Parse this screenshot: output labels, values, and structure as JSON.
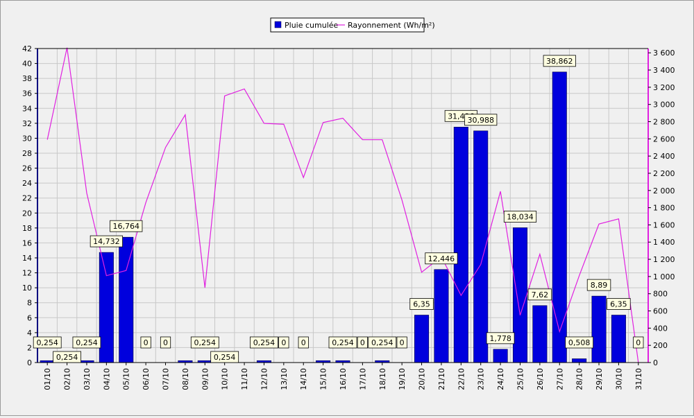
{
  "chart_data": {
    "type": "bar",
    "categories": [
      "01/10",
      "02/10",
      "03/10",
      "04/10",
      "05/10",
      "06/10",
      "07/10",
      "08/10",
      "09/10",
      "10/10",
      "11/10",
      "12/10",
      "13/10",
      "14/10",
      "15/10",
      "16/10",
      "17/10",
      "18/10",
      "19/10",
      "20/10",
      "21/10",
      "22/10",
      "23/10",
      "24/10",
      "25/10",
      "26/10",
      "27/10",
      "28/10",
      "29/10",
      "30/10",
      "31/10"
    ],
    "series": [
      {
        "name": "Pluie cumulée",
        "kind": "bar",
        "axis": "left",
        "color": "#0000dd",
        "values": [
          0.254,
          0.254,
          0.254,
          14.732,
          16.764,
          0,
          0,
          0.254,
          0.254,
          0.254,
          0,
          0.254,
          0,
          0,
          0.254,
          0.254,
          0,
          0.254,
          0,
          6.35,
          12.446,
          31.496,
          30.988,
          1.778,
          18.034,
          7.62,
          38.862,
          0.508,
          8.89,
          6.35,
          0
        ],
        "labels": [
          "0,254",
          "0,254",
          "0,254",
          "14,732",
          "16,764",
          "0",
          "0",
          "",
          "0,254",
          "0,254",
          "",
          "0,254",
          "0",
          "0",
          "",
          "0,254",
          "0",
          "0,254",
          "0",
          "6,35",
          "12,446",
          "31,496",
          "30,988",
          "1,778",
          "18,034",
          "7,62",
          "38,862",
          "0,508",
          "8,89",
          "6,35",
          "0"
        ]
      },
      {
        "name": "Rayonnement (Wh/m²)",
        "kind": "line",
        "axis": "right",
        "color": "#e020e0",
        "values": [
          2590,
          3660,
          1970,
          1010,
          1070,
          1860,
          2500,
          2880,
          870,
          3100,
          3180,
          2780,
          2770,
          2150,
          2790,
          2840,
          2590,
          2590,
          1890,
          1050,
          1230,
          780,
          1140,
          1990,
          550,
          1260,
          360,
          1010,
          1610,
          1670,
          0
        ]
      }
    ],
    "ylim_left": [
      0,
      42
    ],
    "yticks_left": [
      0,
      2,
      4,
      6,
      8,
      10,
      12,
      14,
      16,
      18,
      20,
      22,
      24,
      26,
      28,
      30,
      32,
      34,
      36,
      38,
      40,
      42
    ],
    "ylim_right": [
      0,
      3650
    ],
    "yticks_right": [
      0,
      200,
      400,
      600,
      800,
      1000,
      1200,
      1400,
      1600,
      1800,
      2000,
      2200,
      2400,
      2600,
      2800,
      3000,
      3200,
      3400,
      3600
    ],
    "yticks_right_labels": [
      "0",
      "200",
      "400",
      "600",
      "800",
      "1 000",
      "1 200",
      "1 400",
      "1 600",
      "1 800",
      "2 000",
      "2 200",
      "2 400",
      "2 600",
      "2 800",
      "3 000",
      "3 200",
      "3 400",
      "3 600"
    ],
    "grid": true,
    "legend_position": "top-center",
    "title": "",
    "xlabel": "",
    "ylabel": ""
  },
  "legend": {
    "bar_label": "Pluie cumulée",
    "line_label": "Rayonnement (Wh/m²)"
  }
}
